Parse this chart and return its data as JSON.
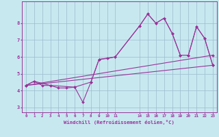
{
  "xlabel": "Windchill (Refroidissement éolien,°C)",
  "bg_color": "#c8e8f0",
  "grid_color": "#99bbcc",
  "line_color": "#993399",
  "ylim": [
    2.7,
    9.3
  ],
  "xlim": [
    -0.5,
    23.5
  ],
  "yticks": [
    3,
    4,
    5,
    6,
    7,
    8
  ],
  "xtick_positions": [
    0,
    1,
    2,
    3,
    4,
    5,
    6,
    7,
    8,
    9,
    10,
    11,
    14,
    15,
    16,
    17,
    18,
    19,
    20,
    21,
    22,
    23
  ],
  "xtick_labels": [
    "0",
    "1",
    "2",
    "3",
    "4",
    "5",
    "6",
    "7",
    "8",
    "9",
    "10",
    "11",
    "14",
    "15",
    "16",
    "17",
    "18",
    "19",
    "20",
    "21",
    "22",
    "23"
  ],
  "series": [
    {
      "x": [
        0,
        1,
        2,
        3,
        4,
        5,
        6,
        7,
        8,
        9,
        10,
        11,
        14,
        15,
        16,
        17,
        18,
        19,
        20,
        21,
        22,
        23
      ],
      "y": [
        4.3,
        4.55,
        4.3,
        4.3,
        4.15,
        4.15,
        4.2,
        3.3,
        4.5,
        5.85,
        5.9,
        6.0,
        7.85,
        8.55,
        8.0,
        8.3,
        7.4,
        6.1,
        6.1,
        7.8,
        7.1,
        5.5
      ]
    },
    {
      "x": [
        0,
        1,
        3,
        6,
        8,
        9,
        11,
        14,
        15,
        16,
        17,
        18,
        19,
        20,
        21,
        22,
        23
      ],
      "y": [
        4.3,
        4.55,
        4.3,
        4.2,
        4.5,
        5.85,
        6.0,
        7.85,
        8.55,
        8.0,
        8.3,
        7.4,
        6.1,
        6.1,
        7.8,
        7.1,
        5.5
      ]
    },
    {
      "x": [
        0,
        23
      ],
      "y": [
        4.3,
        5.5
      ]
    },
    {
      "x": [
        0,
        23
      ],
      "y": [
        4.3,
        6.1
      ]
    }
  ]
}
